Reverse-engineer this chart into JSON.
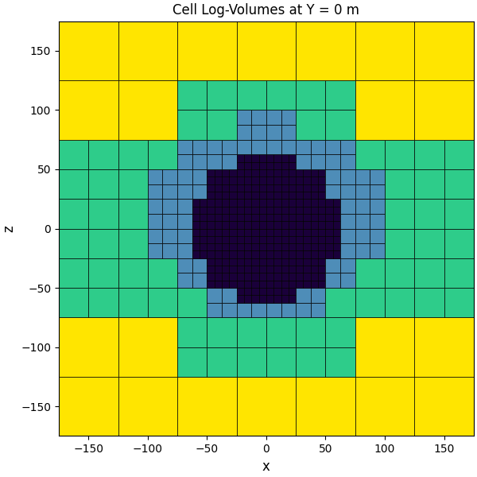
{
  "title": "Cell Log-Volumes at Y = 0 m",
  "xlabel": "x",
  "ylabel": "z",
  "xlim": [
    -175,
    175
  ],
  "ylim": [
    -175,
    175
  ],
  "xticks": [
    -150,
    -100,
    -50,
    0,
    50,
    100,
    150
  ],
  "yticks": [
    -150,
    -100,
    -50,
    0,
    50,
    100,
    150
  ],
  "colors": [
    "#FFE500",
    "#2ECC8A",
    "#4E8DB8",
    "#1A003A"
  ],
  "background": "#ffffff",
  "domain_half": 175,
  "n_base": 7,
  "max_level": 3
}
